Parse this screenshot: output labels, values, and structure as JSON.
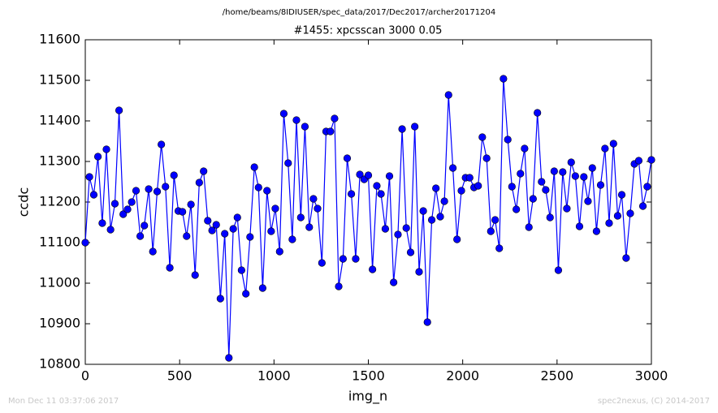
{
  "chart_data": {
    "type": "line",
    "header": "/home/beams/8IDIUSER/spec_data/2017/Dec2017/archer20171204",
    "title": "#1455: xpcsscan 3000 0.05",
    "x_label": "img_n",
    "y_label": "ccdc",
    "footer_left": "Mon Dec 11 03:37:06 2017",
    "footer_right": "spec2nexus, (C) 2014-2017",
    "x": [
      0,
      22,
      45,
      67,
      90,
      112,
      134,
      157,
      179,
      201,
      224,
      246,
      269,
      291,
      313,
      336,
      358,
      381,
      403,
      425,
      448,
      470,
      493,
      515,
      537,
      560,
      582,
      604,
      627,
      649,
      672,
      694,
      716,
      739,
      761,
      784,
      806,
      828,
      851,
      873,
      896,
      918,
      940,
      963,
      985,
      1007,
      1030,
      1052,
      1075,
      1097,
      1119,
      1142,
      1164,
      1187,
      1209,
      1231,
      1254,
      1276,
      1299,
      1321,
      1343,
      1366,
      1388,
      1410,
      1433,
      1455,
      1478,
      1500,
      1522,
      1545,
      1567,
      1590,
      1612,
      1634,
      1657,
      1679,
      1701,
      1724,
      1746,
      1769,
      1791,
      1813,
      1836,
      1858,
      1881,
      1903,
      1925,
      1948,
      1970,
      1993,
      2015,
      2037,
      2060,
      2082,
      2104,
      2127,
      2149,
      2172,
      2194,
      2216,
      2239,
      2261,
      2284,
      2306,
      2328,
      2351,
      2373,
      2396,
      2418,
      2440,
      2463,
      2485,
      2507,
      2530,
      2552,
      2575,
      2597,
      2619,
      2642,
      2664,
      2687,
      2709,
      2731,
      2754,
      2776,
      2799,
      2821,
      2843,
      2866,
      2888,
      2910,
      2933,
      2955,
      2978,
      3000
    ],
    "series": [
      {
        "name": "ccdc",
        "color": "#0000ff",
        "values": [
          11100,
          11262,
          11218,
          11312,
          11148,
          11330,
          11132,
          11196,
          11426,
          11170,
          11182,
          11200,
          11228,
          11116,
          11142,
          11232,
          11078,
          11226,
          11342,
          11238,
          11038,
          11266,
          11178,
          11176,
          11116,
          11194,
          11020,
          11248,
          11276,
          11154,
          11130,
          11144,
          10962,
          11122,
          10816,
          11134,
          11162,
          11032,
          10974,
          11114,
          11286,
          11236,
          10988,
          11228,
          11128,
          11184,
          11078,
          11418,
          11296,
          11108,
          11402,
          11162,
          11386,
          11138,
          11208,
          11184,
          11050,
          11374,
          11374,
          11406,
          10992,
          11060,
          11308,
          11220,
          11060,
          11268,
          11256,
          11266,
          11034,
          11240,
          11220,
          11134,
          11264,
          11002,
          11120,
          11380,
          11136,
          11076,
          11386,
          11028,
          11178,
          10904,
          11156,
          11234,
          11164,
          11202,
          11464,
          11284,
          11108,
          11228,
          11260,
          11260,
          11236,
          11240,
          11360,
          11308,
          11128,
          11156,
          11086,
          11504,
          11354,
          11238,
          11182,
          11270,
          11332,
          11138,
          11208,
          11420,
          11250,
          11230,
          11162,
          11276,
          11032,
          11274,
          11184,
          11298,
          11264,
          11140,
          11262,
          11202,
          11284,
          11128,
          11242,
          11332,
          11148,
          11344,
          11166,
          11218,
          11062,
          11172,
          11294,
          11302,
          11190,
          11238,
          11304
        ]
      }
    ],
    "xlim": [
      0,
      3000
    ],
    "ylim": [
      10800,
      11600
    ],
    "xticks": [
      0,
      500,
      1000,
      1500,
      2000,
      2500,
      3000
    ],
    "yticks": [
      10800,
      10900,
      11000,
      11100,
      11200,
      11300,
      11400,
      11500,
      11600
    ]
  }
}
